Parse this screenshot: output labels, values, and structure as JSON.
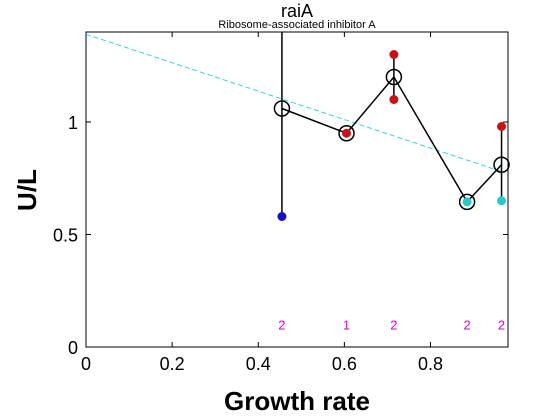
{
  "chart_data": {
    "type": "scatter",
    "title": "raiA",
    "subtitle": "Ribosome-associated inhibitor A",
    "xlabel": "Growth rate",
    "ylabel": "U/L",
    "xlim": [
      0,
      0.98
    ],
    "ylim": [
      0,
      1.4
    ],
    "xticks": [
      0,
      0.2,
      0.4,
      0.6,
      0.8
    ],
    "xtick_labels": [
      "0",
      "0.2",
      "0.4",
      "0.6",
      "0.8"
    ],
    "yticks": [
      0,
      0.5,
      1
    ],
    "ytick_labels": [
      "0",
      "0.5",
      "1"
    ],
    "grid": false,
    "mean_series": {
      "x": [
        0.455,
        0.605,
        0.715,
        0.885,
        0.965
      ],
      "y": [
        1.06,
        0.95,
        1.2,
        0.645,
        0.81
      ],
      "color": "#000000"
    },
    "replicates": [
      {
        "x": 0.455,
        "y": 0.58,
        "color": "#1111cc"
      },
      {
        "x": 0.605,
        "y": 0.95,
        "color": "#cc1111"
      },
      {
        "x": 0.715,
        "y": 1.3,
        "color": "#cc1111"
      },
      {
        "x": 0.715,
        "y": 1.1,
        "color": "#cc1111"
      },
      {
        "x": 0.885,
        "y": 0.645,
        "color": "#22cccc"
      },
      {
        "x": 0.965,
        "y": 0.98,
        "color": "#cc1111"
      },
      {
        "x": 0.965,
        "y": 0.65,
        "color": "#22cccc"
      }
    ],
    "range_bars": [
      {
        "x": 0.455,
        "y0": 0.58,
        "y1": 1.4
      },
      {
        "x": 0.715,
        "y0": 1.1,
        "y1": 1.3
      },
      {
        "x": 0.965,
        "y0": 0.65,
        "y1": 0.98
      }
    ],
    "fit_line": {
      "x": [
        0,
        0.965
      ],
      "y": [
        1.39,
        0.78
      ],
      "color": "#22dddd",
      "style": "dashed"
    },
    "counts": {
      "x": [
        0.455,
        0.605,
        0.715,
        0.885,
        0.965
      ],
      "labels": [
        "2",
        "1",
        "2",
        "2",
        "2"
      ],
      "y": 0.1,
      "color": "#dd00dd"
    }
  }
}
